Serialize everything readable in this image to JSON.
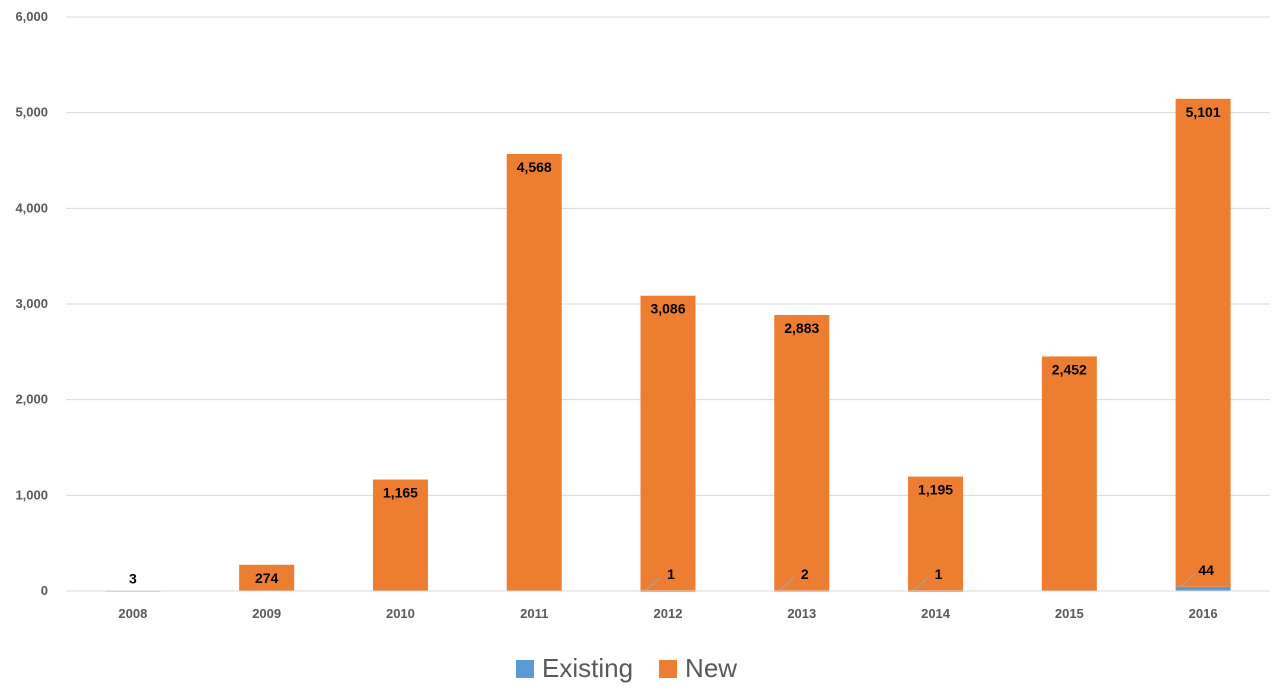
{
  "chart_data": {
    "type": "bar",
    "stacked": true,
    "categories": [
      "2008",
      "2009",
      "2010",
      "2011",
      "2012",
      "2013",
      "2014",
      "2015",
      "2016"
    ],
    "series": [
      {
        "name": "Existing",
        "color": "#5B9BD5",
        "values": [
          0,
          0,
          0,
          0,
          1,
          2,
          1,
          0,
          44
        ]
      },
      {
        "name": "New",
        "color": "#ED7D31",
        "values": [
          3,
          274,
          1165,
          4568,
          3086,
          2883,
          1195,
          2452,
          5101
        ]
      }
    ],
    "data_labels": {
      "Existing": [
        "",
        "",
        "",
        "",
        "1",
        "2",
        "1",
        "",
        "44"
      ],
      "New": [
        "3",
        "274",
        "1,165",
        "4,568",
        "3,086",
        "2,883",
        "1,195",
        "2,452",
        "5,101"
      ]
    },
    "ylim": [
      0,
      6000
    ],
    "yticks": [
      0,
      1000,
      2000,
      3000,
      4000,
      5000,
      6000
    ],
    "ytick_labels": [
      "0",
      "1,000",
      "2,000",
      "3,000",
      "4,000",
      "5,000",
      "6,000"
    ],
    "grid": true,
    "legend_position": "bottom",
    "title": "",
    "xlabel": "",
    "ylabel": ""
  }
}
